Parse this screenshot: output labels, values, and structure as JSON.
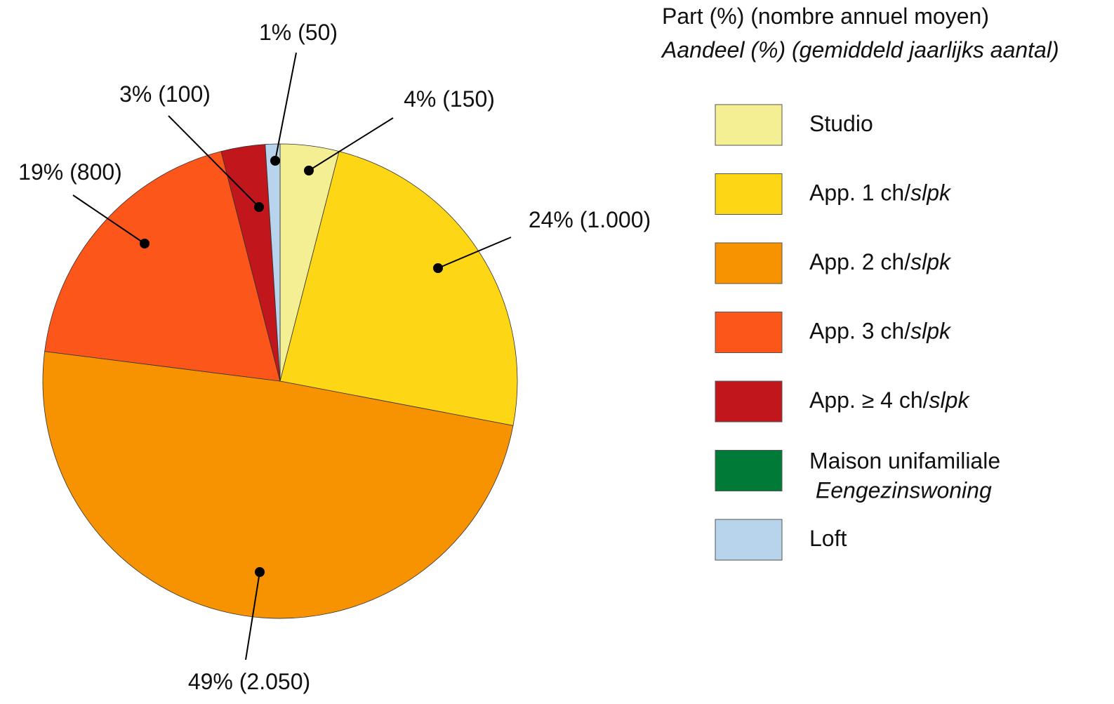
{
  "chart_data": {
    "type": "pie",
    "title": "Part (%) (nombre annuel moyen)",
    "subtitle": "Aandeel (%) (gemiddeld jaarlijks aantal)",
    "categories": [
      "Studio",
      "App. 1 ch/slpk",
      "App. 2 ch/slpk",
      "App. 3 ch/slpk",
      "App. ≥ 4 ch/slpk",
      "Maison unifamiliale\nEengezinswoning",
      "Loft"
    ],
    "values": [
      4,
      24,
      49,
      19,
      3,
      0,
      1
    ],
    "value_labels": [
      "4% (150)",
      "24% (1.000)",
      "49% (2.050)",
      "19% (800)",
      "3% (100)",
      null,
      "1% (50)"
    ],
    "colors": [
      "#f5ef94",
      "#fdd615",
      "#f79200",
      "#fd561a",
      "#c1161c",
      "#007a37",
      "#b8d3ec"
    ]
  }
}
